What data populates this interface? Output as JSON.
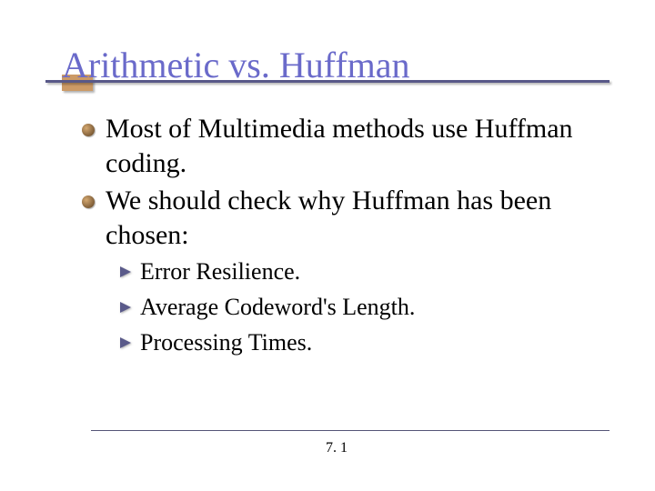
{
  "slide": {
    "title": "Arithmetic vs. Huffman",
    "title_color": "#6a6aca",
    "underline_color": "#585888",
    "accent_box_color": "#cc9a66",
    "background_color": "#ffffff",
    "bullets": [
      {
        "text": "Most of Multimedia methods use Huffman coding.",
        "children": []
      },
      {
        "text": "We should check why Huffman has been chosen:",
        "children": [
          {
            "text": "Error Resilience."
          },
          {
            "text": "Average Codeword's Length."
          },
          {
            "text": "Processing Times."
          }
        ]
      }
    ],
    "footer": "7. 1",
    "body_fontsize_l1": 30,
    "body_fontsize_l2": 26,
    "title_fontsize": 40,
    "bullet_l1_color": "#8b6840",
    "bullet_l2_color": "#5a5a8a"
  }
}
